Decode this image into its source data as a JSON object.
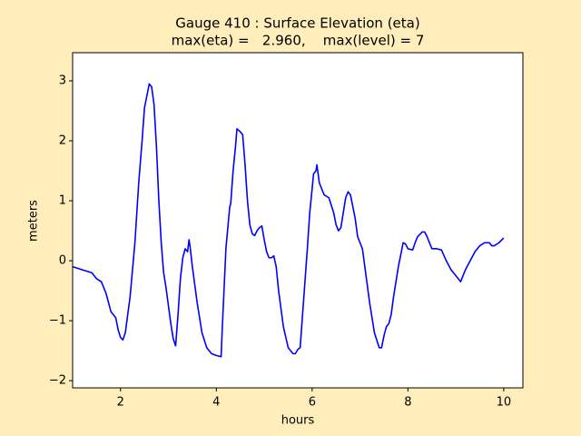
{
  "chart_data": {
    "type": "line",
    "title": "Gauge 410 : Surface Elevation (eta)",
    "subtitle": "max(eta) =   2.960,    max(level) = 7",
    "xlabel": "hours",
    "ylabel": "meters",
    "xlim": [
      1,
      10.4
    ],
    "ylim": [
      -2.12,
      3.47
    ],
    "xticks": [
      2,
      4,
      6,
      8,
      10
    ],
    "yticks": [
      {
        "value": -2,
        "label": "−2"
      },
      {
        "value": -1,
        "label": "−1"
      },
      0,
      1,
      2,
      3
    ],
    "x": [
      1.0,
      1.2,
      1.4,
      1.5,
      1.6,
      1.7,
      1.8,
      1.9,
      1.95,
      2.0,
      2.05,
      2.1,
      2.2,
      2.3,
      2.38,
      2.45,
      2.5,
      2.55,
      2.6,
      2.65,
      2.7,
      2.75,
      2.8,
      2.85,
      2.9,
      2.95,
      3.0,
      3.05,
      3.1,
      3.15,
      3.2,
      3.25,
      3.3,
      3.35,
      3.4,
      3.43,
      3.45,
      3.5,
      3.6,
      3.7,
      3.8,
      3.9,
      4.0,
      4.1,
      4.12,
      4.2,
      4.28,
      4.3,
      4.35,
      4.4,
      4.43,
      4.5,
      4.55,
      4.6,
      4.65,
      4.7,
      4.75,
      4.8,
      4.85,
      4.9,
      4.95,
      5.0,
      5.05,
      5.1,
      5.15,
      5.2,
      5.25,
      5.3,
      5.4,
      5.5,
      5.6,
      5.65,
      5.7,
      5.75,
      5.8,
      5.9,
      5.95,
      6.0,
      6.03,
      6.08,
      6.1,
      6.15,
      6.25,
      6.35,
      6.45,
      6.5,
      6.55,
      6.6,
      6.65,
      6.7,
      6.75,
      6.8,
      6.9,
      6.95,
      7.05,
      7.1,
      7.2,
      7.3,
      7.4,
      7.45,
      7.5,
      7.55,
      7.6,
      7.65,
      7.7,
      7.8,
      7.85,
      7.9,
      7.95,
      8.0,
      8.1,
      8.15,
      8.2,
      8.3,
      8.35,
      8.4,
      8.5,
      8.6,
      8.7,
      8.8,
      8.9,
      9.0,
      9.1,
      9.2,
      9.3,
      9.4,
      9.5,
      9.6,
      9.7,
      9.75,
      9.8,
      9.9,
      10.0
    ],
    "series": [
      {
        "color": "#0000ff",
        "values": [
          -0.1,
          -0.15,
          -0.2,
          -0.3,
          -0.35,
          -0.55,
          -0.85,
          -0.95,
          -1.15,
          -1.28,
          -1.32,
          -1.2,
          -0.6,
          0.3,
          1.3,
          2.0,
          2.55,
          2.75,
          2.95,
          2.9,
          2.6,
          1.9,
          1.0,
          0.3,
          -0.2,
          -0.45,
          -0.75,
          -1.05,
          -1.3,
          -1.42,
          -0.9,
          -0.3,
          0.05,
          0.2,
          0.15,
          0.35,
          0.25,
          -0.1,
          -0.7,
          -1.2,
          -1.45,
          -1.55,
          -1.58,
          -1.6,
          -1.2,
          0.2,
          0.9,
          0.95,
          1.5,
          1.9,
          2.2,
          2.15,
          2.1,
          1.6,
          1.0,
          0.6,
          0.45,
          0.42,
          0.5,
          0.55,
          0.58,
          0.35,
          0.15,
          0.05,
          0.05,
          0.08,
          -0.1,
          -0.5,
          -1.1,
          -1.45,
          -1.55,
          -1.55,
          -1.48,
          -1.45,
          -0.9,
          0.2,
          0.8,
          1.2,
          1.45,
          1.5,
          1.6,
          1.3,
          1.1,
          1.05,
          0.8,
          0.6,
          0.5,
          0.55,
          0.8,
          1.05,
          1.15,
          1.1,
          0.7,
          0.4,
          0.2,
          -0.1,
          -0.7,
          -1.2,
          -1.45,
          -1.45,
          -1.25,
          -1.1,
          -1.05,
          -0.9,
          -0.6,
          -0.1,
          0.1,
          0.3,
          0.28,
          0.2,
          0.18,
          0.3,
          0.4,
          0.48,
          0.48,
          0.4,
          0.2,
          0.2,
          0.18,
          0.0,
          -0.15,
          -0.25,
          -0.35,
          -0.15,
          0.0,
          0.15,
          0.25,
          0.3,
          0.3,
          0.25,
          0.25,
          0.3,
          0.38
        ]
      }
    ],
    "background": "#ffedbb"
  }
}
